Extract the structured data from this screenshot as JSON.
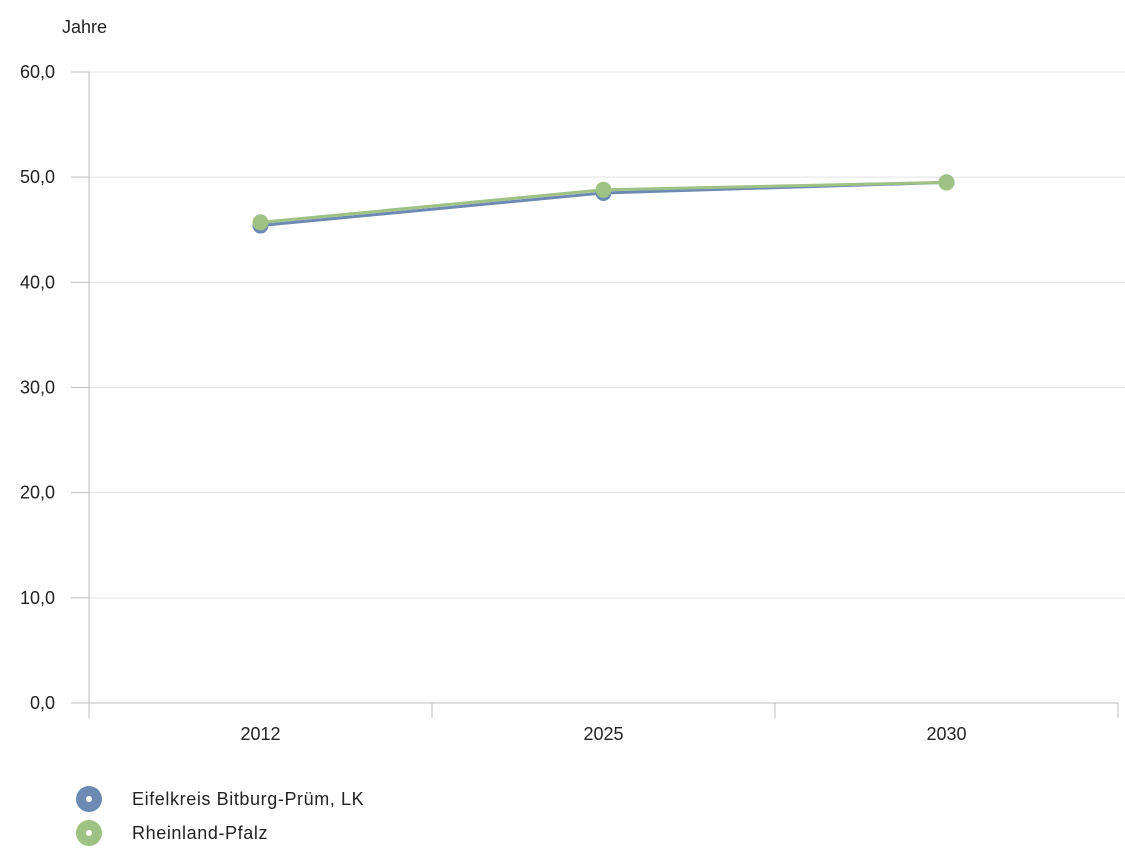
{
  "chart_data": {
    "type": "line",
    "unit_label": "Jahre",
    "categories": [
      "2012",
      "2025",
      "2030"
    ],
    "y_ticks": [
      "0,0",
      "10,0",
      "20,0",
      "30,0",
      "40,0",
      "50,0",
      "60,0"
    ],
    "ylim": [
      0,
      60
    ],
    "grid": true,
    "legend_position": "bottom-left",
    "series": [
      {
        "name": "Eifelkreis Bitburg-Prüm, LK",
        "color": "#6c8ab4",
        "values": [
          45.4,
          48.5,
          49.5
        ]
      },
      {
        "name": "Rheinland-Pfalz",
        "color": "#9dc283",
        "values": [
          45.7,
          48.8,
          49.5
        ]
      }
    ]
  }
}
